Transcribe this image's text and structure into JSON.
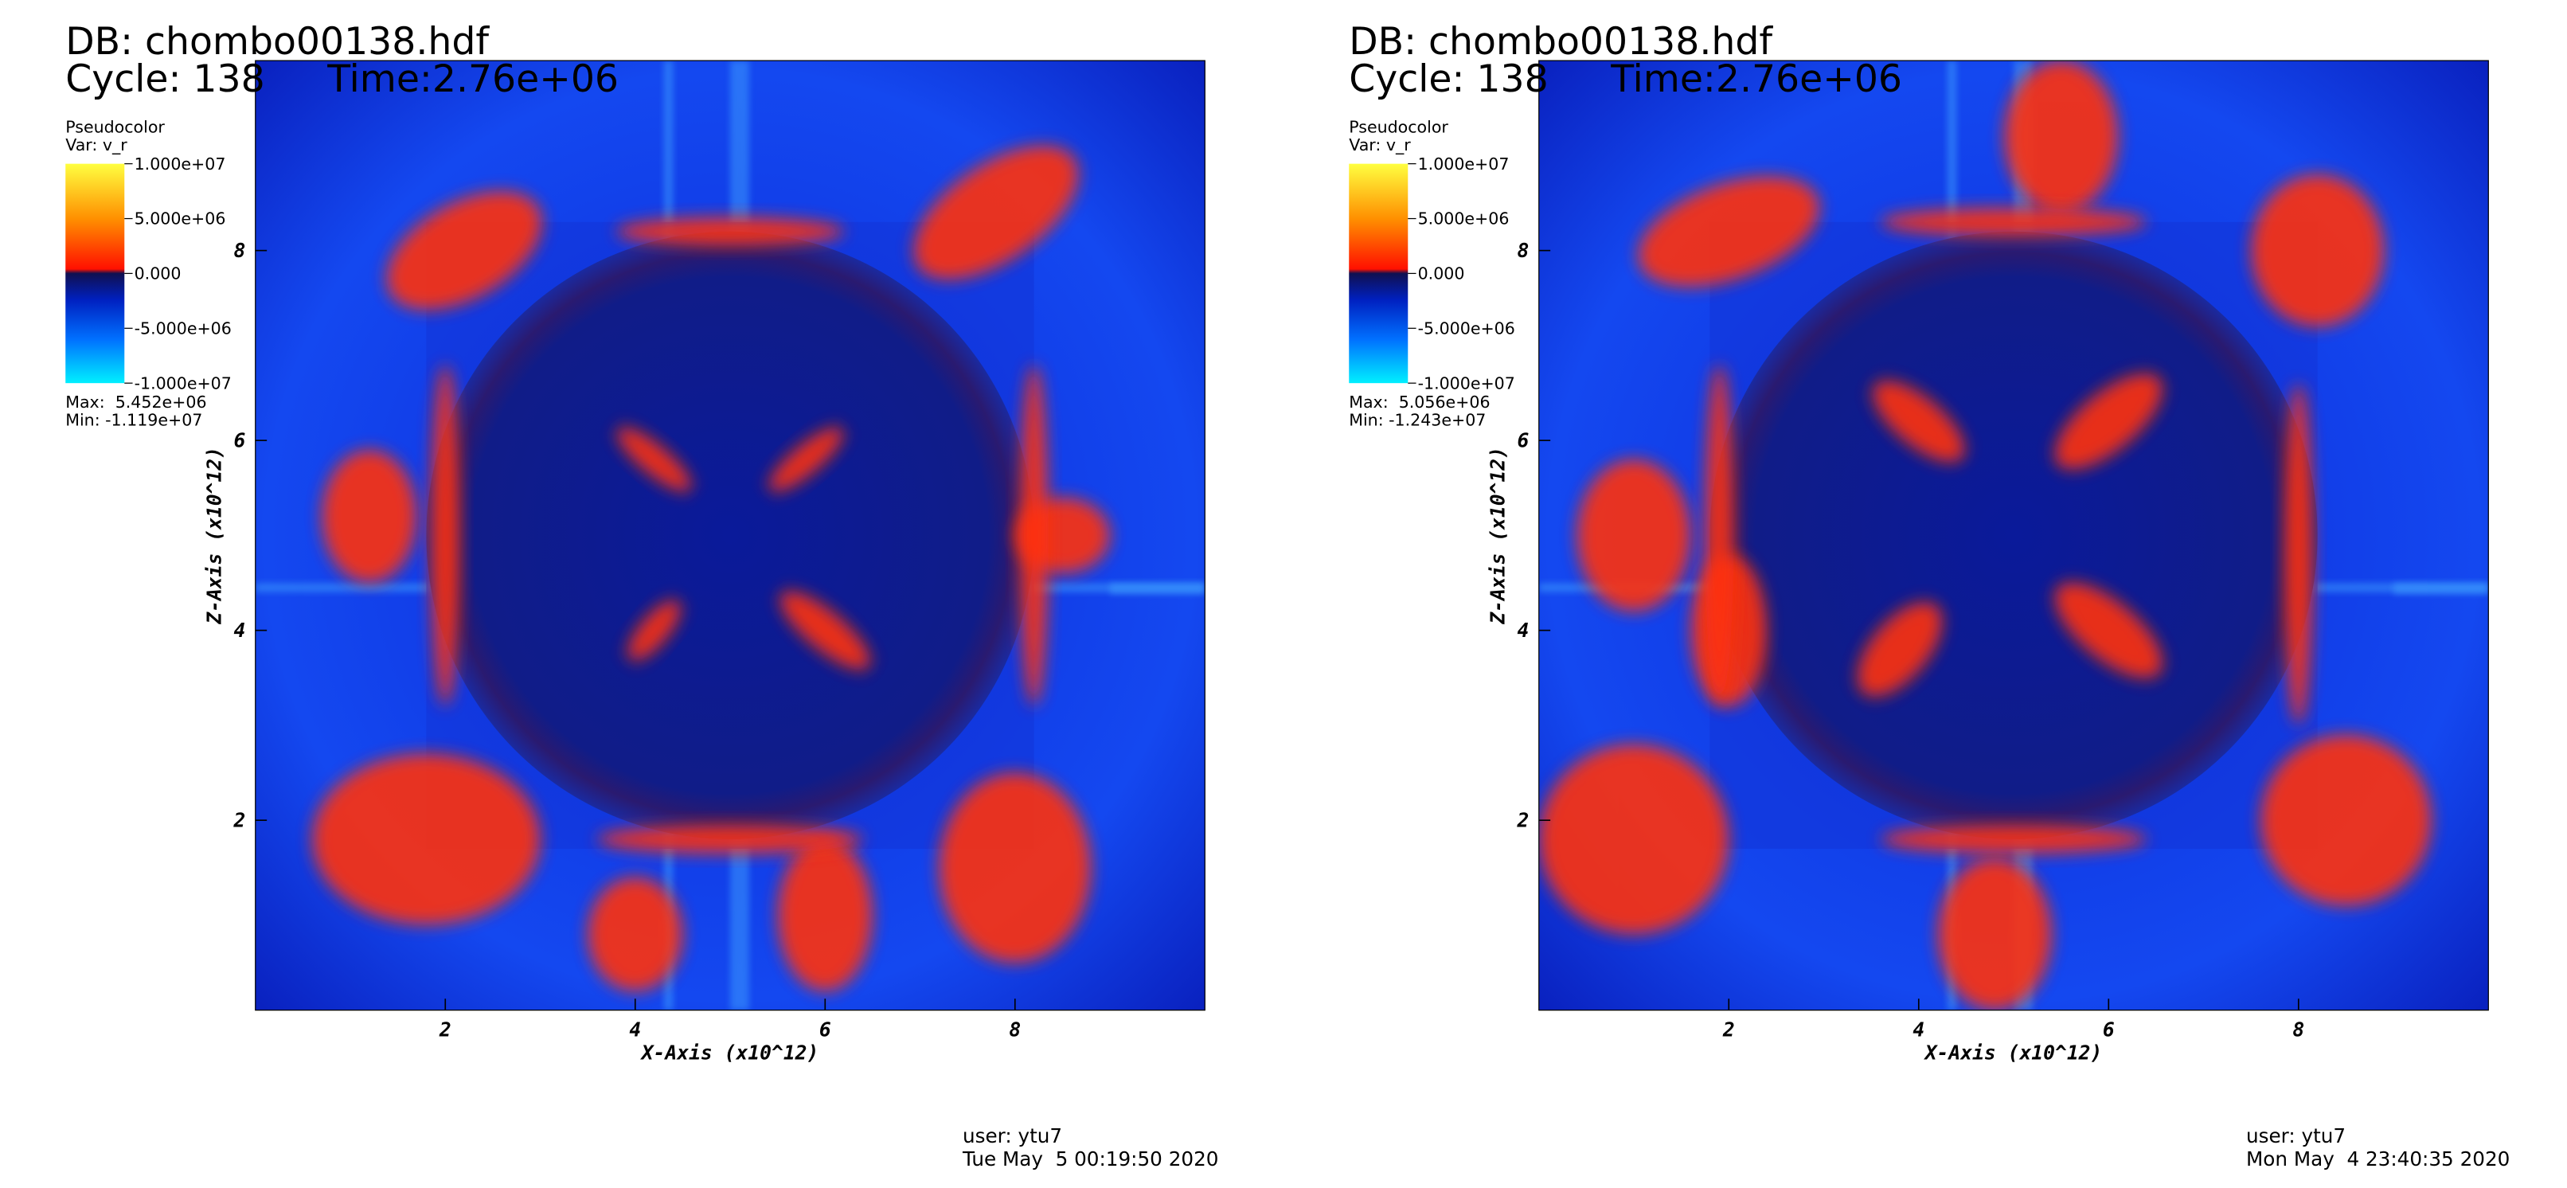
{
  "panels": [
    {
      "db": "DB: chombo00138.hdf",
      "cycle": "Cycle: 138",
      "time": "Time:2.76e+06",
      "plot_type": "Pseudocolor",
      "var": "Var: v_r",
      "legend_ticks": [
        {
          "value": 10000000,
          "label": "1.000e+07"
        },
        {
          "value": 5000000,
          "label": "5.000e+06"
        },
        {
          "value": 0,
          "label": "0.000"
        },
        {
          "value": -5000000,
          "label": "-5.000e+06"
        },
        {
          "value": -10000000,
          "label": "-1.000e+07"
        }
      ],
      "max": "Max:  5.452e+06",
      "min": "Min: -1.119e+07",
      "x_label": "X-Axis (x10^12)",
      "y_label": "Z-Axis (x10^12)",
      "xlim": [
        0,
        10
      ],
      "ylim": [
        0,
        10
      ],
      "xticks": [
        2,
        4,
        6,
        8
      ],
      "yticks": [
        2,
        4,
        6,
        8
      ],
      "user": "user: ytu7",
      "date": "Tue May  5 00:19:50 2020"
    },
    {
      "db": "DB: chombo00138.hdf",
      "cycle": "Cycle: 138",
      "time": "Time:2.76e+06",
      "plot_type": "Pseudocolor",
      "var": "Var: v_r",
      "legend_ticks": [
        {
          "value": 10000000,
          "label": "1.000e+07"
        },
        {
          "value": 5000000,
          "label": "5.000e+06"
        },
        {
          "value": 0,
          "label": "0.000"
        },
        {
          "value": -5000000,
          "label": "-5.000e+06"
        },
        {
          "value": -10000000,
          "label": "-1.000e+07"
        }
      ],
      "max": "Max:  5.056e+06",
      "min": "Min: -1.243e+07",
      "x_label": "X-Axis (x10^12)",
      "y_label": "Z-Axis (x10^12)",
      "xlim": [
        0,
        10
      ],
      "ylim": [
        0,
        10
      ],
      "xticks": [
        2,
        4,
        6,
        8
      ],
      "yticks": [
        2,
        4,
        6,
        8
      ],
      "user": "user: ytu7",
      "date": "Mon May  4 23:40:35 2020"
    }
  ]
}
